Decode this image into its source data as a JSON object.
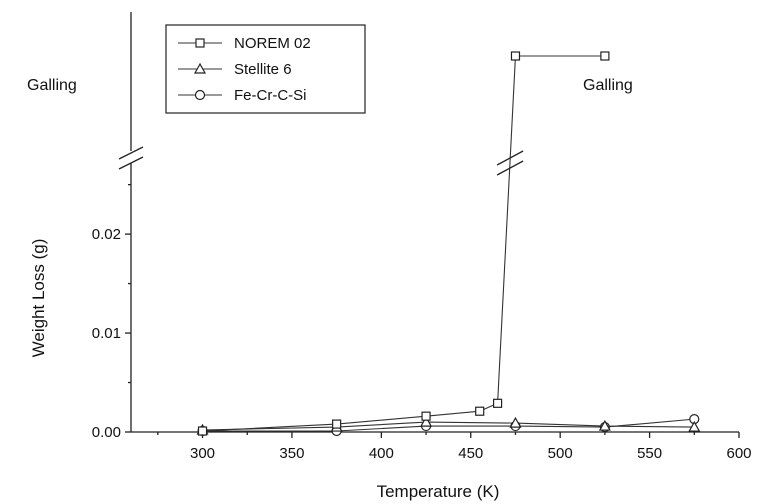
{
  "chart_data": {
    "type": "line",
    "title": "",
    "xlabel": "Temperature (K)",
    "ylabel": "Weight Loss (g)",
    "xlim": [
      260,
      600
    ],
    "ylim": [
      0,
      0.0285
    ],
    "x_ticks": [
      300,
      350,
      400,
      450,
      500,
      550,
      600
    ],
    "y_ticks": [
      0.0,
      0.01,
      0.02
    ],
    "x_tick_labels": [
      "300",
      "350",
      "400",
      "450",
      "500",
      "550",
      "600"
    ],
    "y_tick_labels": [
      "0.00",
      "0.01",
      "0.02"
    ],
    "y_axis_break": true,
    "break_region_label": "Galling",
    "annotations": [
      "Galling",
      "Galling"
    ],
    "grid": false,
    "legend_position": "top-left",
    "series": [
      {
        "name": "NOREM 02",
        "marker": "square",
        "points": [
          {
            "x": 300,
            "y": 0.0001,
            "galling": false
          },
          {
            "x": 375,
            "y": 0.0008,
            "galling": false
          },
          {
            "x": 425,
            "y": 0.0016,
            "galling": false
          },
          {
            "x": 455,
            "y": 0.0021,
            "galling": false
          },
          {
            "x": 465,
            "y": 0.0029,
            "galling": false
          },
          {
            "x": 475,
            "y": null,
            "galling": true
          },
          {
            "x": 525,
            "y": null,
            "galling": true
          }
        ]
      },
      {
        "name": "Stellite 6",
        "marker": "triangle",
        "points": [
          {
            "x": 300,
            "y": 0.0002,
            "galling": false
          },
          {
            "x": 375,
            "y": 0.0005,
            "galling": false
          },
          {
            "x": 425,
            "y": 0.001,
            "galling": false
          },
          {
            "x": 475,
            "y": 0.0009,
            "galling": false
          },
          {
            "x": 525,
            "y": 0.0006,
            "galling": false
          },
          {
            "x": 575,
            "y": 0.0005,
            "galling": false
          }
        ]
      },
      {
        "name": "Fe-Cr-C-Si",
        "marker": "circle",
        "points": [
          {
            "x": 300,
            "y": 0.0001,
            "galling": false
          },
          {
            "x": 375,
            "y": 0.0001,
            "galling": false
          },
          {
            "x": 425,
            "y": 0.0006,
            "galling": false
          },
          {
            "x": 475,
            "y": 0.0006,
            "galling": false
          },
          {
            "x": 525,
            "y": 0.0005,
            "galling": false
          },
          {
            "x": 575,
            "y": 0.0013,
            "galling": false
          }
        ]
      }
    ]
  }
}
